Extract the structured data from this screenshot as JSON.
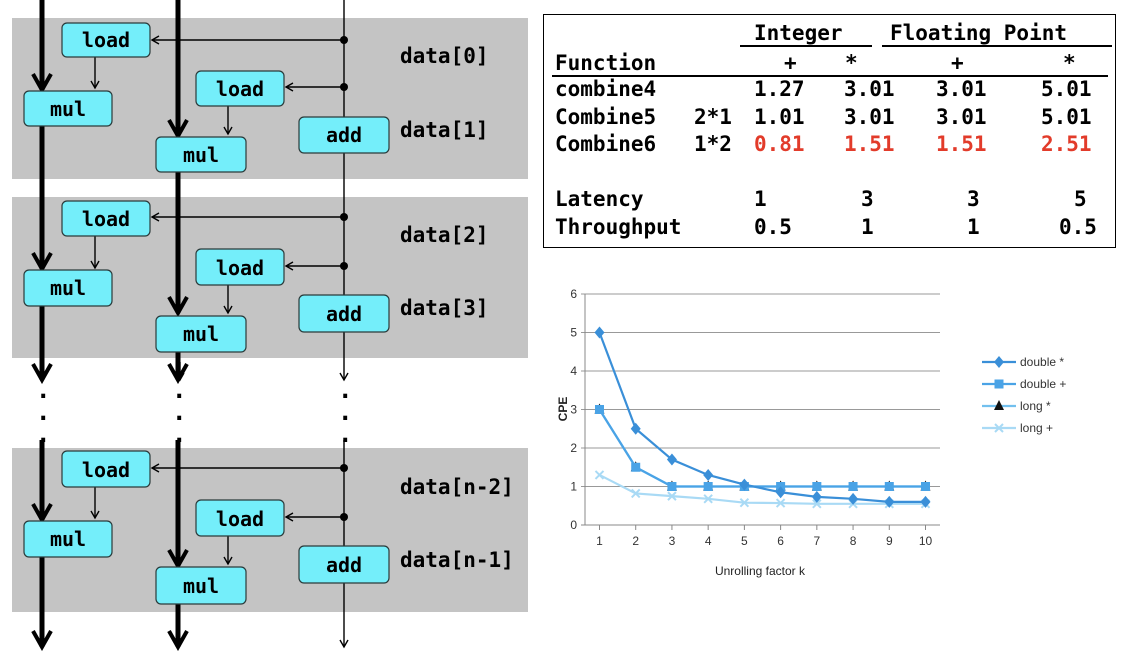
{
  "dataflow": {
    "load_label": "load",
    "mul_label": "mul",
    "add_label": "add",
    "ellipsis": ".",
    "data_labels": [
      "data[0]",
      "data[1]",
      "data[2]",
      "data[3]",
      "data[n-2]",
      "data[n-1]"
    ]
  },
  "table": {
    "headers": {
      "integer": "Integer",
      "floating_point": "Floating Point",
      "function": "Function",
      "int_add": "+",
      "int_mul": "*",
      "fp_add": "+",
      "fp_mul": "*"
    },
    "rows": [
      {
        "name": "combine4",
        "variant": "",
        "values": [
          "1.27",
          "3.01",
          "3.01",
          "5.01"
        ],
        "highlight": false
      },
      {
        "name": "Combine5",
        "variant": "2*1",
        "values": [
          "1.01",
          "3.01",
          "3.01",
          "5.01"
        ],
        "highlight": false
      },
      {
        "name": "Combine6",
        "variant": "1*2",
        "values": [
          "0.81",
          "1.51",
          "1.51",
          "2.51"
        ],
        "highlight": true
      }
    ],
    "latency": {
      "label": "Latency",
      "values": [
        "1",
        "3",
        "3",
        "5"
      ]
    },
    "throughput": {
      "label": "Throughput",
      "values": [
        "0.5",
        "1",
        "1",
        "0.5"
      ]
    },
    "highlight_color": "#e23b2a"
  },
  "chart_data": {
    "type": "line",
    "x": [
      1,
      2,
      3,
      4,
      5,
      6,
      7,
      8,
      9,
      10
    ],
    "xlabel": "Unrolling factor k",
    "ylabel": "CPE",
    "ylim": [
      0,
      6
    ],
    "yticks": [
      "0",
      "1",
      "2",
      "3",
      "4",
      "5",
      "6"
    ],
    "grid": true,
    "legend_position": "right",
    "series": [
      {
        "name": "double *",
        "marker": "diamond",
        "color": "#3a8fd8",
        "values": [
          5.0,
          2.5,
          1.7,
          1.3,
          1.05,
          0.85,
          0.73,
          0.68,
          0.6,
          0.6
        ]
      },
      {
        "name": "double +",
        "marker": "square",
        "color": "#4aa3e6",
        "values": [
          3.0,
          1.5,
          1.0,
          1.0,
          1.0,
          1.0,
          1.0,
          1.0,
          1.0,
          1.0
        ]
      },
      {
        "name": "long *",
        "marker": "triangle",
        "color": "#72c0ee",
        "values": [
          3.0,
          1.5,
          1.0,
          1.0,
          1.0,
          1.0,
          1.0,
          1.0,
          1.0,
          1.0
        ]
      },
      {
        "name": "long +",
        "marker": "x",
        "color": "#a9daf5",
        "values": [
          1.3,
          0.82,
          0.75,
          0.68,
          0.58,
          0.57,
          0.55,
          0.55,
          0.55,
          0.55
        ]
      }
    ]
  }
}
